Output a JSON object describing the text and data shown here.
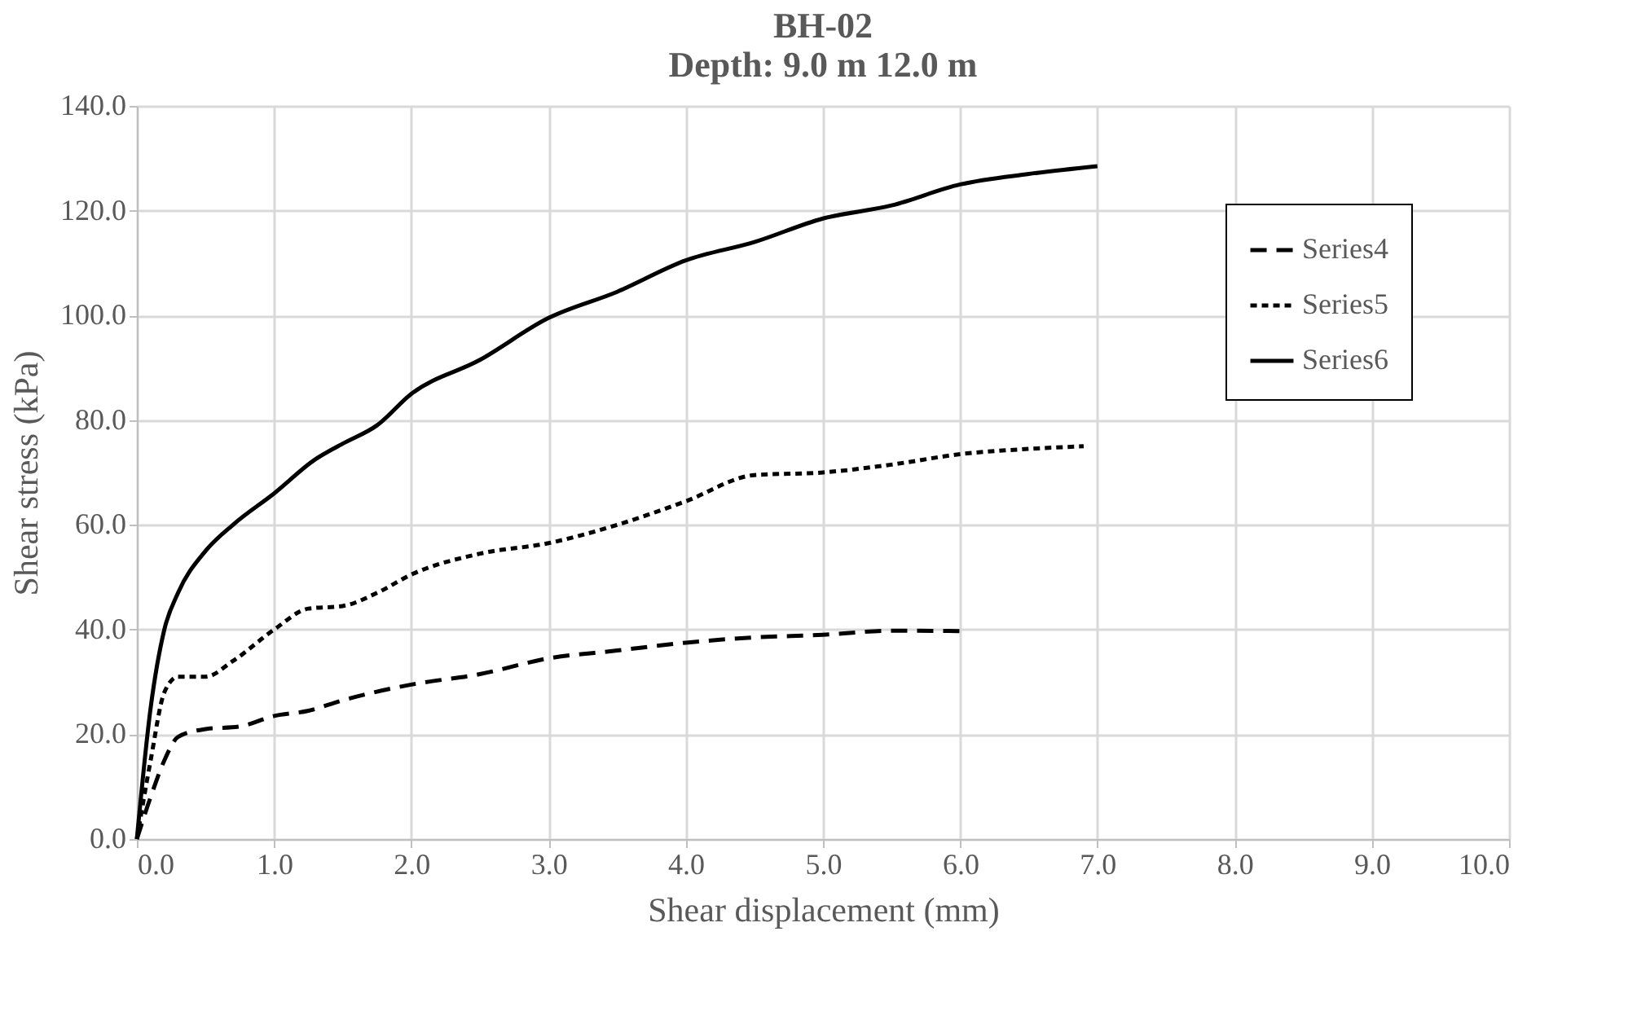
{
  "chart_data": {
    "type": "line",
    "title": "BH-02",
    "subtitle": "Depth: 9.0 m 12.0 m",
    "xlabel": "Shear displacement (mm)",
    "ylabel": "Shear stress (kPa)",
    "xlim": [
      0,
      10
    ],
    "ylim": [
      0,
      140
    ],
    "xticks": [
      {
        "value": 0,
        "label": "0.0"
      },
      {
        "value": 1,
        "label": "1.0"
      },
      {
        "value": 2,
        "label": "2.0"
      },
      {
        "value": 3,
        "label": "3.0"
      },
      {
        "value": 4,
        "label": "4.0"
      },
      {
        "value": 5,
        "label": "5.0"
      },
      {
        "value": 6,
        "label": "6.0"
      },
      {
        "value": 7,
        "label": "7.0"
      },
      {
        "value": 8,
        "label": "8.0"
      },
      {
        "value": 9,
        "label": "9.0"
      },
      {
        "value": 10,
        "label": "10.0"
      }
    ],
    "yticks": [
      {
        "value": 0,
        "label": "0.0"
      },
      {
        "value": 20,
        "label": "20.0"
      },
      {
        "value": 40,
        "label": "40.0"
      },
      {
        "value": 60,
        "label": "60.0"
      },
      {
        "value": 80,
        "label": "80.0"
      },
      {
        "value": 100,
        "label": "100.0"
      },
      {
        "value": 120,
        "label": "120.0"
      },
      {
        "value": 140,
        "label": "140.0"
      }
    ],
    "grid": true,
    "legend": "top right",
    "marker": "none",
    "series": [
      {
        "name": "Series4",
        "color": "#000000",
        "line_style": "dashed",
        "x": [
          0,
          0.1,
          0.2,
          0.3,
          0.5,
          0.75,
          1.0,
          1.25,
          1.5,
          2.0,
          2.5,
          3.0,
          3.5,
          4.0,
          4.5,
          5.0,
          5.5,
          6.0
        ],
        "values": [
          0,
          8,
          15,
          19.5,
          21,
          21.5,
          23.5,
          24.5,
          26.5,
          29.5,
          31.5,
          34.5,
          36,
          37.5,
          38.5,
          39,
          39.8,
          39.7
        ]
      },
      {
        "name": "Series5",
        "color": "#000000",
        "line_style": "dotted",
        "x": [
          0,
          0.1,
          0.2,
          0.3,
          0.5,
          0.7,
          1.0,
          1.25,
          1.5,
          1.75,
          2.0,
          2.5,
          3.0,
          3.5,
          4.0,
          4.5,
          5.0,
          5.5,
          6.0,
          6.5,
          6.9
        ],
        "values": [
          0,
          15,
          28,
          31,
          31,
          34,
          40,
          44,
          44.5,
          47,
          50.5,
          54.5,
          56.5,
          60,
          64.5,
          69.5,
          70,
          71.5,
          73.5,
          74.5,
          75
        ]
      },
      {
        "name": "Series6",
        "color": "#000000",
        "line_style": "solid",
        "x": [
          0,
          0.1,
          0.2,
          0.3,
          0.5,
          0.7,
          1.0,
          1.3,
          1.5,
          1.75,
          2.0,
          2.5,
          3.0,
          3.5,
          4.0,
          4.5,
          5.0,
          5.5,
          6.0,
          6.5,
          7.0
        ],
        "values": [
          0,
          25,
          40,
          47,
          55,
          60,
          66,
          72.5,
          75.5,
          79,
          85,
          91.5,
          99.5,
          104.5,
          110.5,
          114,
          118.5,
          121,
          125,
          127,
          128.5
        ]
      }
    ]
  }
}
